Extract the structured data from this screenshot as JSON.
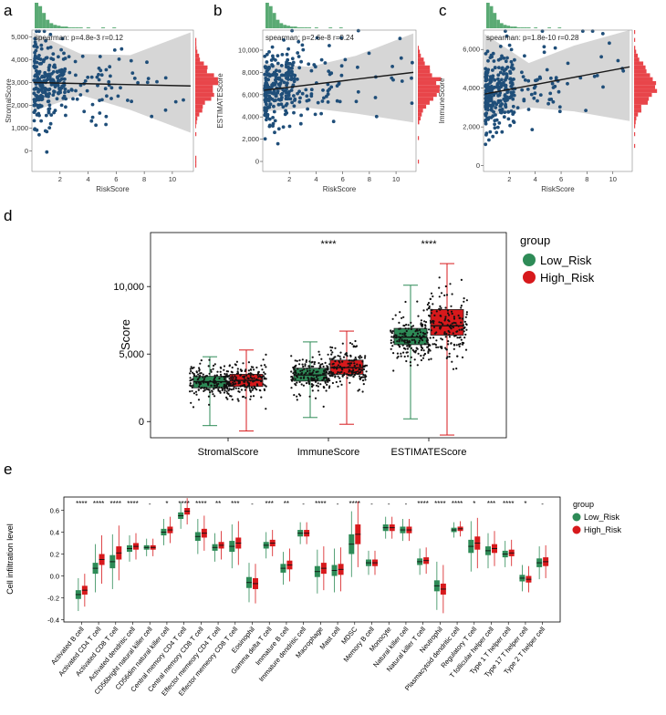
{
  "panel_labels": [
    "a",
    "b",
    "c",
    "d",
    "e"
  ],
  "colors": {
    "scatter_point": "#1f4e79",
    "regression_line": "#1a1a1a",
    "ci_band": "#c8c8c8",
    "top_hist": "#5aaa74",
    "side_hist": "#e8454a",
    "low_risk": "#2e8b57",
    "high_risk": "#d7191c"
  },
  "chart_data": [
    {
      "panel": "a",
      "type": "scatter",
      "annotation": "spearman: p=4.8e-3 r=0.12",
      "xlabel": "RiskScore",
      "ylabel": "StromalScore",
      "xlim": [
        0,
        11.5
      ],
      "ylim": [
        -900,
        5300
      ],
      "x_ticks": [
        "2",
        "4",
        "6",
        "8",
        "10"
      ],
      "y_ticks": [
        "0",
        "1,000",
        "2,000",
        "3,000",
        "4,000",
        "5,000"
      ],
      "fit": {
        "x": [
          0.1,
          11.3
        ],
        "y": [
          3000,
          2850
        ]
      },
      "ci_upper": [
        5200,
        4250,
        4200,
        5200
      ],
      "ci_lower": [
        1750,
        2450,
        1800,
        800
      ],
      "sample_size": 300
    },
    {
      "panel": "b",
      "type": "scatter",
      "annotation": "spearman: p=2.6e-8 r=0.24",
      "xlabel": "RiskScore",
      "ylabel": "ESTIMATEScore",
      "xlim": [
        0,
        11.5
      ],
      "ylim": [
        -900,
        11800
      ],
      "x_ticks": [
        "2",
        "4",
        "6",
        "8",
        "10"
      ],
      "y_ticks": [
        "0",
        "2,000",
        "4,000",
        "6,000",
        "8,000",
        "10,000"
      ],
      "fit": {
        "x": [
          0.1,
          11.3
        ],
        "y": [
          6400,
          8000
        ]
      },
      "ci_upper": [
        8800,
        8500,
        9500,
        11500
      ],
      "ci_lower": [
        4500,
        4800,
        4300,
        3500
      ],
      "sample_size": 300
    },
    {
      "panel": "c",
      "type": "scatter",
      "annotation": "spearman: p=1.8e-10 r=0.28",
      "xlabel": "RiskScore",
      "ylabel": "ImmuneScore",
      "xlim": [
        0,
        11.5
      ],
      "ylim": [
        -300,
        7000
      ],
      "x_ticks": [
        "2",
        "4",
        "6",
        "8",
        "10"
      ],
      "y_ticks": [
        "0",
        "2,000",
        "4,000",
        "6,000"
      ],
      "fit": {
        "x": [
          0.1,
          11.3
        ],
        "y": [
          3700,
          5100
        ]
      },
      "ci_upper": [
        6800,
        5300,
        6200,
        7000
      ],
      "ci_lower": [
        2500,
        3000,
        2800,
        2300
      ],
      "sample_size": 300
    },
    {
      "panel": "d",
      "type": "box",
      "ylabel": "Score",
      "ylim": [
        -1200,
        14000
      ],
      "y_ticks": [
        "0",
        "5,000",
        "10,000"
      ],
      "categories": [
        "StromalScore",
        "ImmuneScore",
        "ESTIMATEScore"
      ],
      "significance": [
        "",
        "****",
        "****"
      ],
      "legend": {
        "title": "group",
        "entries": [
          "Low_Risk",
          "High_Risk"
        ]
      },
      "series": [
        {
          "name": "Low_Risk",
          "boxes": [
            {
              "min": -300,
              "q1": 2500,
              "median": 2950,
              "q3": 3350,
              "max": 4800
            },
            {
              "min": 300,
              "q1": 3000,
              "median": 3450,
              "q3": 3950,
              "max": 5900
            },
            {
              "min": 200,
              "q1": 5700,
              "median": 6250,
              "q3": 6900,
              "max": 10100
            }
          ]
        },
        {
          "name": "High_Risk",
          "boxes": [
            {
              "min": -700,
              "q1": 2600,
              "median": 3050,
              "q3": 3500,
              "max": 5300
            },
            {
              "min": -200,
              "q1": 3500,
              "median": 4000,
              "q3": 4550,
              "max": 6700
            },
            {
              "min": -1000,
              "q1": 6400,
              "median": 7100,
              "q3": 8300,
              "max": 11700
            }
          ]
        }
      ]
    },
    {
      "panel": "e",
      "type": "box",
      "ylabel": "Cell infiltration level",
      "ylim": [
        -0.42,
        0.72
      ],
      "y_ticks": [
        "-0.4",
        "-0.2",
        "0.0",
        "0.2",
        "0.4",
        "0.6"
      ],
      "legend": {
        "title": "group",
        "entries": [
          "Low_Risk",
          "High_Risk"
        ]
      },
      "categories": [
        "Activated B cell",
        "Activated CD4 T cell",
        "Activated CD8 T cell",
        "Activated dendritic cell",
        "CD56bright natural killer cell",
        "CD56dim natural killer cell",
        "Central memory CD4 T cell",
        "Central memory CD8 T cell",
        "Effector memeory CD4 T cell",
        "Effector memeory CD8 T cell",
        "Eosinophil",
        "Gamma delta T cell",
        "Immature B cell",
        "Immature dendritic cell",
        "Macrophage",
        "Mast cell",
        "MDSC",
        "Memory B cell",
        "Monocyte",
        "Natural killer cell",
        "Natural killer T cell",
        "Neutrophil",
        "Plasmacytoid dendritic cell",
        "Regulatory T cell",
        "T follicular helper cell",
        "Type 1 T helper cell",
        "Type 17 T helper cell",
        "Type 2 T helper cell"
      ],
      "significance": [
        "****",
        "****",
        "****",
        "****",
        "-",
        "*",
        "****",
        "****",
        "**",
        "***",
        "-",
        "***",
        "**",
        "-",
        "****",
        "-",
        "****",
        "-",
        "-",
        "-",
        "****",
        "****",
        "****",
        "*",
        "***",
        "****",
        "*",
        "-"
      ],
      "low_median": [
        -0.17,
        0.07,
        0.13,
        0.25,
        0.26,
        0.4,
        0.55,
        0.36,
        0.26,
        0.27,
        -0.06,
        0.28,
        0.07,
        0.39,
        0.04,
        0.05,
        0.29,
        0.12,
        0.44,
        0.42,
        0.13,
        -0.09,
        0.42,
        0.27,
        0.23,
        0.2,
        -0.02,
        0.12
      ],
      "high_median": [
        -0.13,
        0.15,
        0.21,
        0.27,
        0.26,
        0.42,
        0.59,
        0.39,
        0.28,
        0.3,
        -0.07,
        0.3,
        0.1,
        0.39,
        0.07,
        0.06,
        0.38,
        0.12,
        0.44,
        0.42,
        0.14,
        -0.12,
        0.43,
        0.3,
        0.25,
        0.21,
        -0.03,
        0.13
      ],
      "iqr_half": [
        0.04,
        0.05,
        0.06,
        0.03,
        0.02,
        0.03,
        0.03,
        0.04,
        0.03,
        0.05,
        0.05,
        0.03,
        0.04,
        0.03,
        0.05,
        0.05,
        0.09,
        0.03,
        0.03,
        0.03,
        0.03,
        0.05,
        0.02,
        0.06,
        0.04,
        0.03,
        0.03,
        0.04
      ],
      "whisker_span": [
        0.15,
        0.22,
        0.25,
        0.12,
        0.08,
        0.12,
        0.12,
        0.16,
        0.13,
        0.2,
        0.18,
        0.12,
        0.15,
        0.1,
        0.2,
        0.2,
        0.3,
        0.11,
        0.1,
        0.1,
        0.12,
        0.22,
        0.07,
        0.23,
        0.16,
        0.12,
        0.12,
        0.15
      ]
    }
  ]
}
